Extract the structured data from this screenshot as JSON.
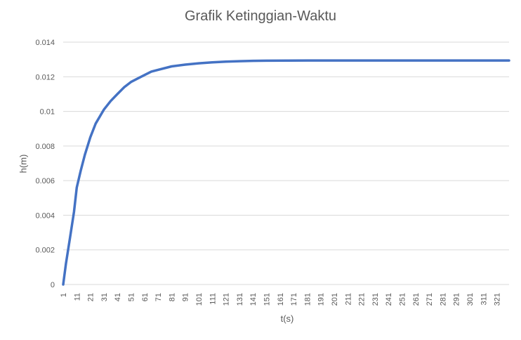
{
  "chart_data": {
    "type": "line",
    "title": "Grafik Ketinggian-Waktu",
    "xlabel": "t(s)",
    "ylabel": "h(m)",
    "x_tick_labels": [
      "1",
      "11",
      "21",
      "31",
      "41",
      "51",
      "61",
      "71",
      "81",
      "91",
      "101",
      "111",
      "121",
      "131",
      "141",
      "151",
      "161",
      "171",
      "181",
      "191",
      "201",
      "211",
      "221",
      "231",
      "241",
      "251",
      "261",
      "271",
      "281",
      "291",
      "301",
      "311",
      "321"
    ],
    "y_tick_labels": [
      "0",
      "0.002",
      "0.004",
      "0.006",
      "0.008",
      "0.01",
      "0.012",
      "0.014"
    ],
    "xlim": [
      1,
      330
    ],
    "ylim": [
      0,
      0.014
    ],
    "grid": true,
    "legend": "none",
    "series": [
      {
        "color": "#4472c4",
        "x": [
          1,
          3,
          6,
          9,
          11,
          14,
          17,
          21,
          25,
          31,
          36,
          41,
          46,
          51,
          56,
          61,
          66,
          71,
          81,
          91,
          101,
          111,
          121,
          131,
          141,
          151,
          181,
          221,
          261,
          301,
          330
        ],
        "y": [
          0,
          0.0012,
          0.0027,
          0.0042,
          0.0056,
          0.0066,
          0.0075,
          0.0085,
          0.0093,
          0.0101,
          0.0106,
          0.011,
          0.0114,
          0.0117,
          0.0119,
          0.0121,
          0.0123,
          0.0124,
          0.0126,
          0.0127,
          0.01278,
          0.01283,
          0.01287,
          0.0129,
          0.01292,
          0.01293,
          0.01294,
          0.01294,
          0.01294,
          0.01294,
          0.01294
        ]
      }
    ]
  }
}
